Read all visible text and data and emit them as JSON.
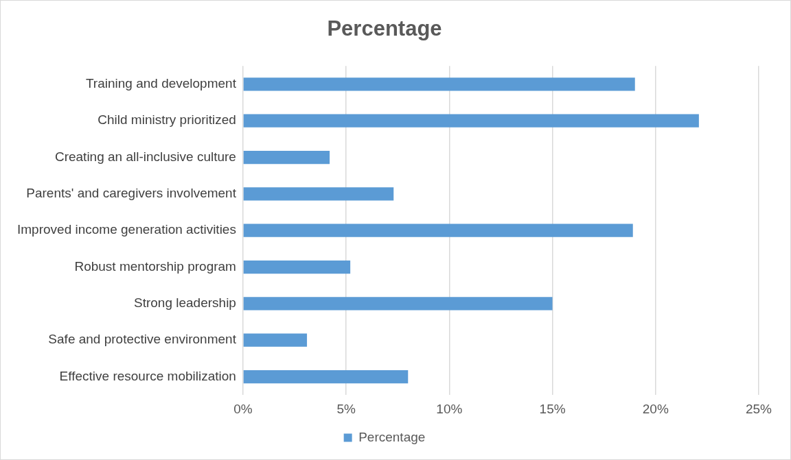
{
  "chart_data": {
    "type": "bar",
    "orientation": "horizontal",
    "title": "Percentage",
    "categories": [
      "Training and development",
      "Child ministry prioritized",
      "Creating an all-inclusive culture",
      "Parents' and caregivers involvement",
      "Improved income generation activities",
      "Robust mentorship program",
      "Strong leadership",
      "Safe and protective environment",
      "Effective resource mobilization"
    ],
    "series": [
      {
        "name": "Percentage",
        "color": "#5b9bd5",
        "values": [
          19.0,
          22.1,
          4.2,
          7.3,
          18.9,
          5.2,
          15.0,
          3.1,
          8.0
        ]
      }
    ],
    "xlim": [
      0,
      25
    ],
    "xticks": [
      {
        "value": 0,
        "label": "0%"
      },
      {
        "value": 5,
        "label": "5%"
      },
      {
        "value": 10,
        "label": "10%"
      },
      {
        "value": 15,
        "label": "15%"
      },
      {
        "value": 20,
        "label": "20%"
      },
      {
        "value": 25,
        "label": "25%"
      }
    ],
    "grid": "x",
    "legend": "bottom"
  }
}
